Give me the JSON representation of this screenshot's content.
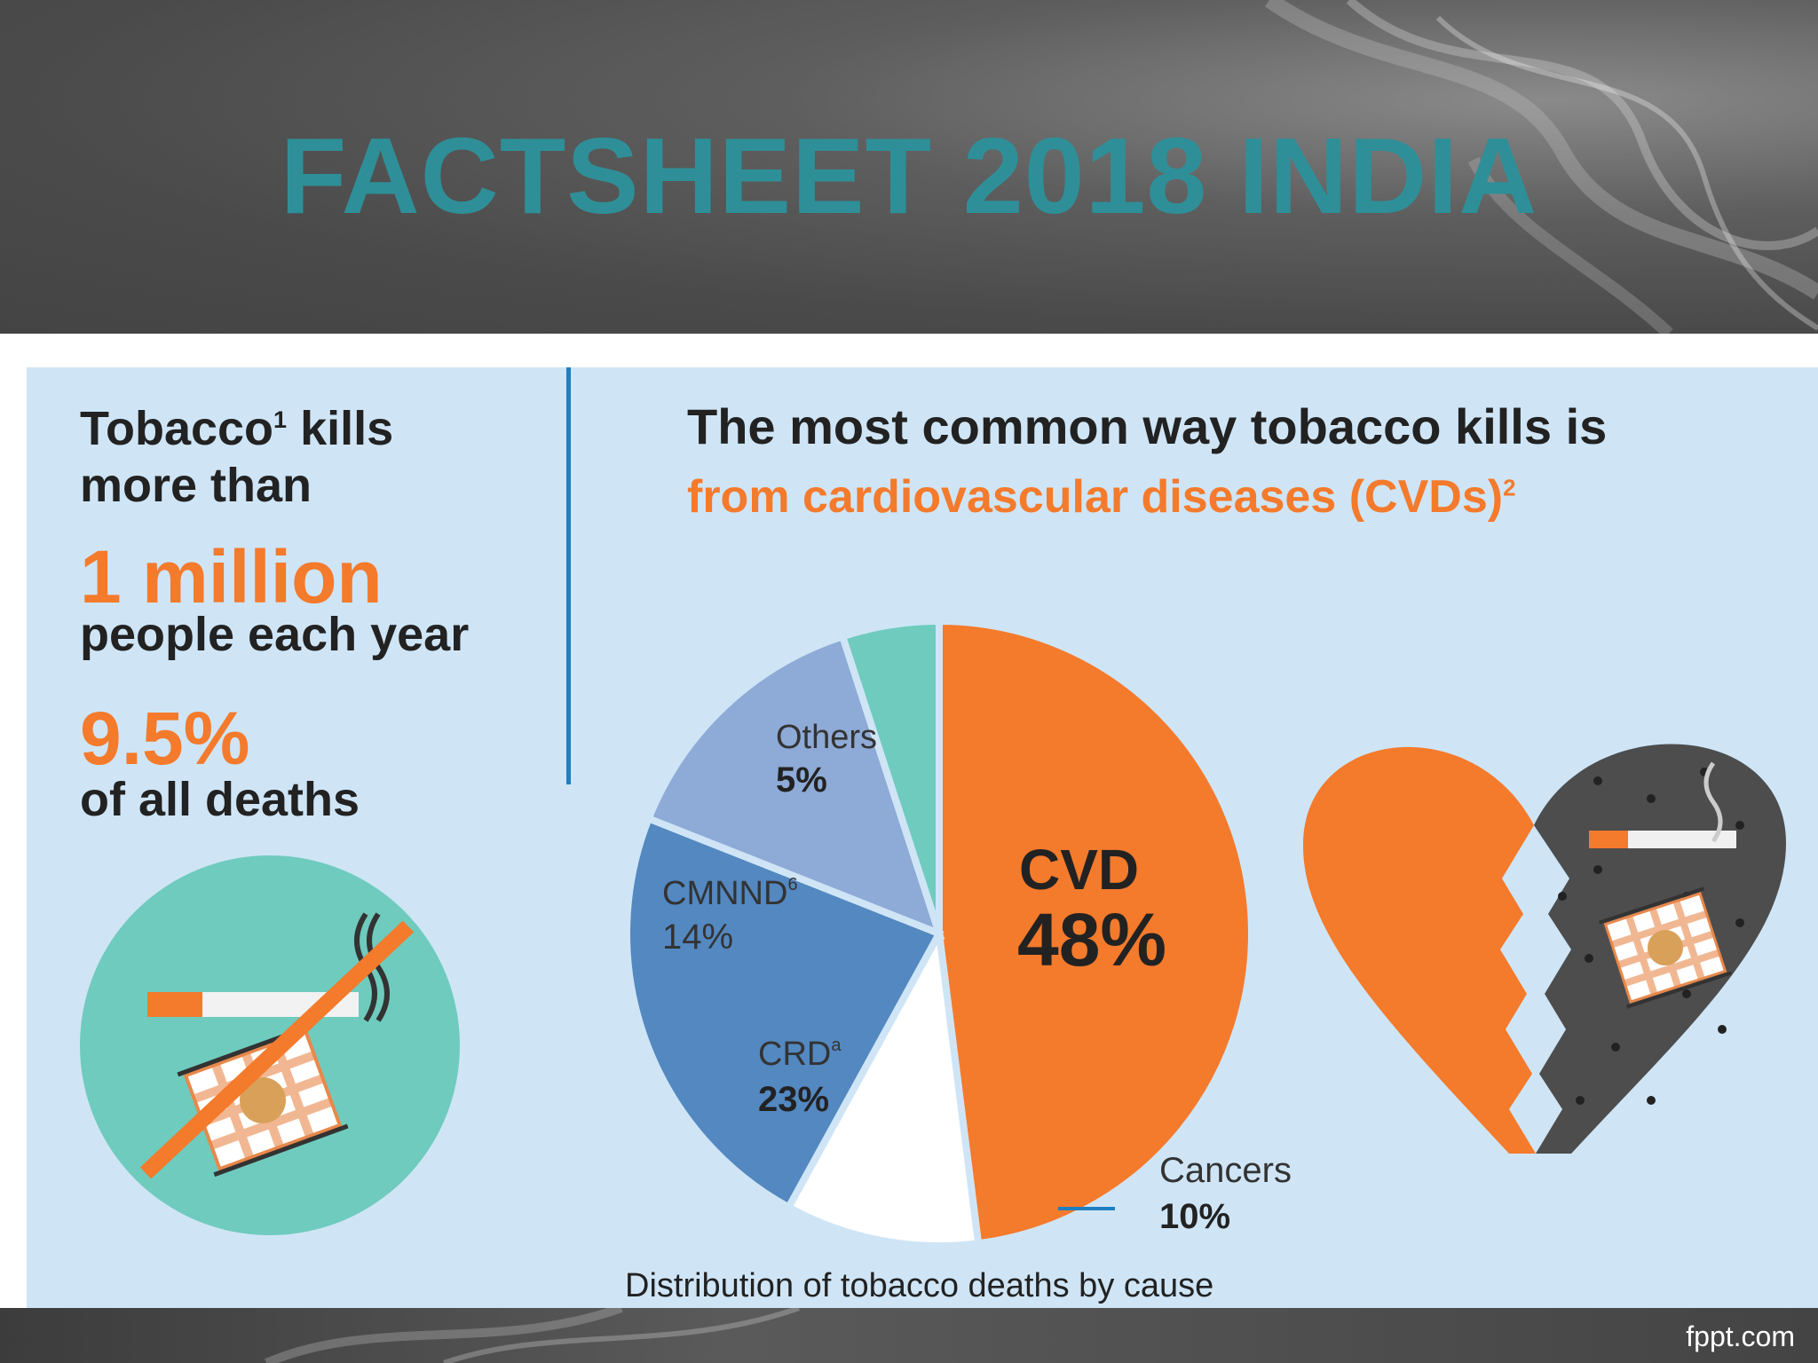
{
  "header": {
    "title": "FACTSHEET 2018 INDIA"
  },
  "left": {
    "line1": "Tobacco",
    "line1_sup": "1",
    "line1_end": " kills",
    "line2": "more than",
    "stat1": "1 million",
    "line3": "people each year",
    "stat2": "9.5%",
    "line4": "of all deaths"
  },
  "right": {
    "heading": "The most common way tobacco kills is",
    "subheading": "from cardiovascular diseases (CVDs)",
    "subheading_sup": "2"
  },
  "chart_data": {
    "type": "pie",
    "title": "Distribution of tobacco deaths by cause",
    "slices": [
      {
        "name": "CVD",
        "sup": "",
        "value": 48,
        "label": "48%",
        "color": "#f47a2c"
      },
      {
        "name": "Cancers",
        "sup": "",
        "value": 10,
        "label": "10%",
        "color": "#ffffff"
      },
      {
        "name": "CRD",
        "sup": "a",
        "value": 23,
        "label": "23%",
        "color": "#5388c0"
      },
      {
        "name": "CMNND",
        "sup": "6",
        "value": 14,
        "label": "14%",
        "color": "#8eaad6"
      },
      {
        "name": "Others",
        "sup": "",
        "value": 5,
        "label": "5%",
        "color": "#6fcbbd"
      }
    ]
  },
  "colors": {
    "accent": "#f47a2c",
    "teal": "#2f8f98",
    "panel": "#cfe5f6"
  },
  "footer": {
    "brand": "fppt.com"
  }
}
